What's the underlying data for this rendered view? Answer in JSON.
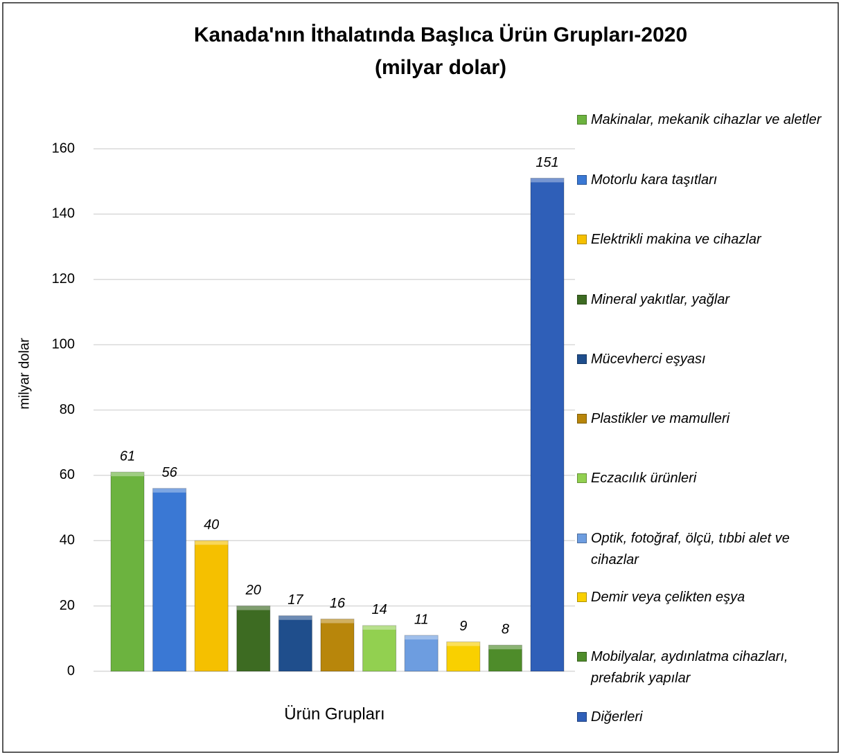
{
  "chart_data": {
    "type": "bar",
    "title": "Kanada'nın İthalatında Başlıca Ürün Grupları-2020",
    "subtitle": "(milyar dolar)",
    "y_label": "milyar dolar",
    "x_label": "Ürün Grupları",
    "ylim": [
      0,
      160
    ],
    "yticks": [
      0,
      20,
      40,
      60,
      80,
      100,
      120,
      140,
      160
    ],
    "grid": true,
    "legend": "right",
    "series": [
      {
        "name": "Makinalar, mekanik cihazlar ve aletler",
        "color": "#6cb33f",
        "values": [
          61
        ]
      },
      {
        "name": "Motorlu kara taşıtları",
        "color": "#3a78d4",
        "values": [
          56
        ]
      },
      {
        "name": "Elektrikli makina ve cihazlar",
        "color": "#f5c000",
        "values": [
          40
        ]
      },
      {
        "name": "Mineral yakıtlar, yağlar",
        "color": "#3d6b22",
        "values": [
          20
        ]
      },
      {
        "name": "Mücevherci eşyası",
        "color": "#1f4e8c",
        "values": [
          17
        ]
      },
      {
        "name": "Plastikler ve mamulleri",
        "color": "#b8860b",
        "values": [
          16
        ]
      },
      {
        "name": "Eczacılık ürünleri",
        "color": "#92d050",
        "values": [
          14
        ]
      },
      {
        "name": "Optik, fotoğraf, ölçü, tıbbi alet ve cihazlar",
        "color": "#6d9de0",
        "values": [
          11
        ]
      },
      {
        "name": "Demir veya çelikten eşya",
        "color": "#f9d000",
        "values": [
          9
        ]
      },
      {
        "name": "Mobilyalar, aydınlatma cihazları, prefabrik yapılar",
        "color": "#4e8c2a",
        "values": [
          8
        ]
      },
      {
        "name": "Diğerleri",
        "color": "#2f5fb8",
        "values": [
          151
        ]
      }
    ]
  }
}
